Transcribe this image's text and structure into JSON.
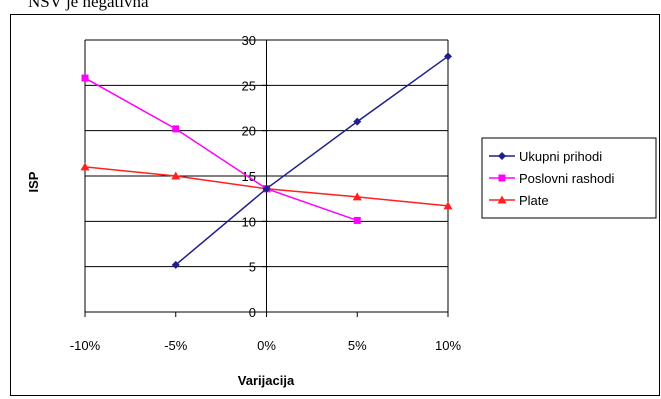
{
  "caption": "NSV je negativna",
  "chart_data": {
    "type": "line",
    "title": "",
    "xlabel": "Varijacija",
    "ylabel": "ISP",
    "x": [
      -10,
      -5,
      0,
      5,
      10
    ],
    "x_tick_labels": [
      "-10%",
      "-5%",
      "0%",
      "5%",
      "10%"
    ],
    "y_ticks": [
      0,
      5,
      10,
      15,
      20,
      25,
      30
    ],
    "ylim": [
      0,
      30
    ],
    "grid": "horizontal",
    "legend_position": "right",
    "series": [
      {
        "name": "Ukupni prihodi",
        "color": "#1f1f8f",
        "marker": "diamond",
        "points": [
          [
            -5,
            5.2
          ],
          [
            0,
            13.6
          ],
          [
            5,
            21
          ],
          [
            10,
            28.2
          ]
        ]
      },
      {
        "name": "Poslovni rashodi",
        "color": "#ff00ff",
        "marker": "square",
        "points": [
          [
            -10,
            25.8
          ],
          [
            -5,
            20.2
          ],
          [
            0,
            13.6
          ],
          [
            5,
            10.1
          ]
        ]
      },
      {
        "name": "Plate",
        "color": "#ff2020",
        "marker": "triangle",
        "points": [
          [
            -10,
            16
          ],
          [
            -5,
            15
          ],
          [
            0,
            13.6
          ],
          [
            5,
            12.7
          ],
          [
            10,
            11.7
          ]
        ]
      }
    ]
  }
}
